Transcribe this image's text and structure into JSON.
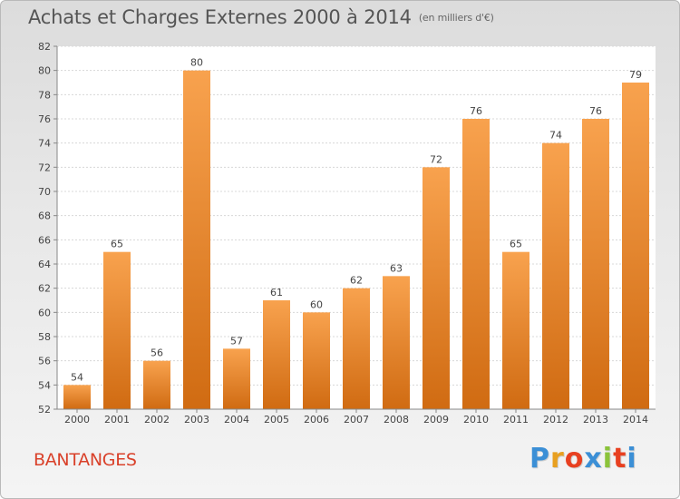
{
  "header": {
    "title": "Achats et Charges Externes 2000 à 2014",
    "subtitle": "(en milliers d'€)"
  },
  "footer": {
    "commune": "BANTANGES",
    "logo_letters": [
      "P",
      "r",
      "o",
      "x",
      "i",
      "t",
      "i"
    ],
    "logo_colors": [
      "#3b8fd6",
      "#e8a020",
      "#e84020",
      "#3b8fd6",
      "#8bc33a",
      "#e84020",
      "#3b8fd6"
    ]
  },
  "colors": {
    "bar_light": "#f8a24e",
    "bar_dark": "#d06b12",
    "title": "#555555",
    "commune": "#d9412a"
  },
  "chart_data": {
    "type": "bar",
    "categories": [
      "2000",
      "2001",
      "2002",
      "2003",
      "2004",
      "2005",
      "2006",
      "2007",
      "2008",
      "2009",
      "2010",
      "2011",
      "2012",
      "2013",
      "2014"
    ],
    "values": [
      54,
      65,
      56,
      80,
      57,
      61,
      60,
      62,
      63,
      72,
      76,
      65,
      74,
      76,
      79
    ],
    "ylim": [
      52,
      82
    ],
    "yticks": [
      52,
      54,
      56,
      58,
      60,
      62,
      64,
      66,
      68,
      70,
      72,
      74,
      76,
      78,
      80,
      82
    ],
    "grid": true,
    "data_labels": true
  }
}
